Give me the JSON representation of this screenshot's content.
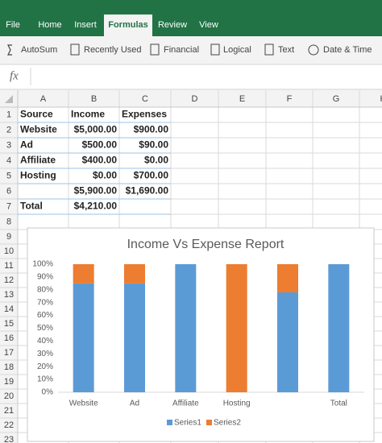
{
  "ribbon": {
    "tabs": [
      "File",
      "Home",
      "Insert",
      "Formulas",
      "Review",
      "View"
    ]
  },
  "toolbar": [
    "AutoSum",
    "Recently Used",
    "Financial",
    "Logical",
    "Text",
    "Date & Time"
  ],
  "formula_bar": {
    "label": "fx"
  },
  "sheet": {
    "columns": [
      "A",
      "B",
      "C",
      "D",
      "E",
      "F",
      "G",
      "H"
    ],
    "rows": [
      1,
      2,
      3,
      4,
      5,
      6,
      7,
      8,
      9,
      10,
      11,
      12,
      13,
      14,
      15,
      16,
      17,
      18,
      19,
      20,
      21,
      22,
      23
    ],
    "cells": [
      [
        "Source",
        "Income",
        "Expenses"
      ],
      [
        "Website",
        "$5,000.00",
        "$900.00"
      ],
      [
        "Ad",
        "$500.00",
        "$90.00"
      ],
      [
        "Affiliate",
        "$400.00",
        "$0.00"
      ],
      [
        "Hosting",
        "$0.00",
        "$700.00"
      ],
      [
        null,
        "$5,900.00",
        "$1,690.00"
      ],
      [
        "Total",
        "$4,210.00",
        null
      ]
    ]
  },
  "chart_data": {
    "type": "bar",
    "stacked": true,
    "title": "Income Vs Expense Report",
    "categories": [
      "Website",
      "Ad",
      "Affiliate",
      "Hosting",
      null,
      "Total"
    ],
    "series": [
      {
        "name": "Series1",
        "color": "#5b9bd5",
        "values": [
          85,
          85,
          100,
          0,
          78,
          100
        ]
      },
      {
        "name": "Series2",
        "color": "#ed7d31",
        "values": [
          15,
          15,
          0,
          100,
          22,
          0
        ]
      }
    ],
    "ylim": [
      0,
      100
    ],
    "yticks": [
      {
        "value": 0,
        "label": "0%"
      },
      {
        "value": 10,
        "label": "10%"
      },
      {
        "value": 20,
        "label": "20%"
      },
      {
        "value": 30,
        "label": "30%"
      },
      {
        "value": 40,
        "label": "40%"
      },
      {
        "value": 50,
        "label": "50%"
      },
      {
        "value": 60,
        "label": "60%"
      },
      {
        "value": 70,
        "label": "70%"
      },
      {
        "value": 80,
        "label": "80%"
      },
      {
        "value": 90,
        "label": "90%"
      },
      {
        "value": 100,
        "label": "100%"
      }
    ],
    "grid": false,
    "legend": "bottom"
  }
}
